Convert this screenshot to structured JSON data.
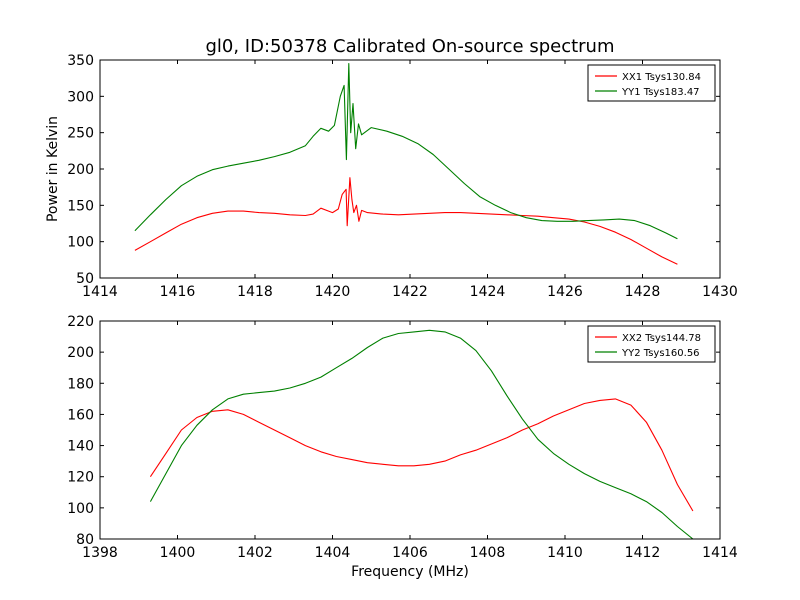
{
  "colors": {
    "red": "#ff0000",
    "green": "#008000",
    "axes": "#000000",
    "background": "#ffffff"
  },
  "chart_data": [
    {
      "type": "line",
      "title": "gl0, ID:50378 Calibrated On-source spectrum",
      "xlabel": "",
      "ylabel": "Power in Kelvin",
      "xlim": [
        1414,
        1430
      ],
      "ylim": [
        50,
        350
      ],
      "xticks": [
        1414,
        1416,
        1418,
        1420,
        1422,
        1424,
        1426,
        1428,
        1430
      ],
      "yticks": [
        50,
        100,
        150,
        200,
        250,
        300,
        350
      ],
      "grid": false,
      "legend_position": "top-right",
      "series": [
        {
          "name": "XX1 Tsys130.84",
          "color": "#ff0000",
          "x": [
            1414.9,
            1415.3,
            1415.7,
            1416.1,
            1416.5,
            1416.9,
            1417.3,
            1417.7,
            1418.1,
            1418.5,
            1418.9,
            1419.3,
            1419.5,
            1419.7,
            1419.9,
            1420.0,
            1420.15,
            1420.25,
            1420.35,
            1420.38,
            1420.45,
            1420.5,
            1420.55,
            1420.62,
            1420.68,
            1420.75,
            1420.9,
            1421.3,
            1421.7,
            1422.1,
            1422.5,
            1422.9,
            1423.3,
            1423.7,
            1424.1,
            1424.5,
            1424.9,
            1425.3,
            1425.7,
            1426.1,
            1426.5,
            1426.9,
            1427.3,
            1427.7,
            1428.1,
            1428.5,
            1428.9
          ],
          "y": [
            88,
            100,
            112,
            124,
            133,
            139,
            142,
            142,
            140,
            139,
            137,
            136,
            138,
            146,
            142,
            140,
            145,
            165,
            172,
            122,
            188,
            158,
            140,
            150,
            128,
            143,
            140,
            138,
            137,
            138,
            139,
            140,
            140,
            139,
            138,
            137,
            136,
            135,
            133,
            131,
            127,
            121,
            113,
            103,
            91,
            79,
            69
          ]
        },
        {
          "name": "YY1 Tsys183.47",
          "color": "#008000",
          "x": [
            1414.9,
            1415.3,
            1415.7,
            1416.1,
            1416.5,
            1416.9,
            1417.3,
            1417.7,
            1418.1,
            1418.5,
            1418.9,
            1419.3,
            1419.5,
            1419.7,
            1419.9,
            1420.05,
            1420.2,
            1420.3,
            1420.36,
            1420.42,
            1420.47,
            1420.53,
            1420.6,
            1420.67,
            1420.75,
            1421.0,
            1421.4,
            1421.8,
            1422.2,
            1422.6,
            1423.0,
            1423.4,
            1423.8,
            1424.2,
            1424.6,
            1425.0,
            1425.4,
            1425.8,
            1426.2,
            1426.6,
            1427.0,
            1427.4,
            1427.8,
            1428.2,
            1428.6,
            1428.9
          ],
          "y": [
            115,
            137,
            158,
            177,
            190,
            199,
            204,
            208,
            212,
            217,
            223,
            232,
            245,
            256,
            252,
            260,
            300,
            315,
            213,
            345,
            250,
            290,
            228,
            262,
            247,
            257,
            252,
            245,
            235,
            220,
            200,
            180,
            162,
            150,
            140,
            133,
            129,
            128,
            128,
            129,
            130,
            131,
            129,
            122,
            112,
            104
          ]
        }
      ]
    },
    {
      "type": "line",
      "title": "",
      "xlabel": "Frequency (MHz)",
      "ylabel": "",
      "xlim": [
        1398,
        1414
      ],
      "ylim": [
        80,
        220
      ],
      "xticks": [
        1398,
        1400,
        1402,
        1404,
        1406,
        1408,
        1410,
        1412,
        1414
      ],
      "yticks": [
        80,
        100,
        120,
        140,
        160,
        180,
        200,
        220
      ],
      "grid": false,
      "legend_position": "top-right",
      "series": [
        {
          "name": "XX2 Tsys144.78",
          "color": "#ff0000",
          "x": [
            1399.3,
            1399.7,
            1400.1,
            1400.5,
            1400.9,
            1401.3,
            1401.7,
            1402.1,
            1402.5,
            1402.9,
            1403.3,
            1403.7,
            1404.1,
            1404.5,
            1404.9,
            1405.3,
            1405.7,
            1406.1,
            1406.5,
            1406.9,
            1407.3,
            1407.7,
            1408.1,
            1408.5,
            1408.9,
            1409.3,
            1409.7,
            1410.1,
            1410.5,
            1410.9,
            1411.3,
            1411.7,
            1412.1,
            1412.5,
            1412.9,
            1413.3
          ],
          "y": [
            120,
            135,
            150,
            158,
            162,
            163,
            160,
            155,
            150,
            145,
            140,
            136,
            133,
            131,
            129,
            128,
            127,
            127,
            128,
            130,
            134,
            137,
            141,
            145,
            150,
            154,
            159,
            163,
            167,
            169,
            170,
            166,
            155,
            137,
            115,
            98
          ]
        },
        {
          "name": "YY2 Tsys160.56",
          "color": "#008000",
          "x": [
            1399.3,
            1399.7,
            1400.1,
            1400.5,
            1400.9,
            1401.3,
            1401.7,
            1402.1,
            1402.5,
            1402.9,
            1403.3,
            1403.7,
            1404.1,
            1404.5,
            1404.9,
            1405.3,
            1405.7,
            1406.1,
            1406.5,
            1406.9,
            1407.3,
            1407.7,
            1408.1,
            1408.5,
            1408.9,
            1409.3,
            1409.7,
            1410.1,
            1410.5,
            1410.9,
            1411.3,
            1411.7,
            1412.1,
            1412.5,
            1412.9,
            1413.3
          ],
          "y": [
            104,
            122,
            140,
            153,
            163,
            170,
            173,
            174,
            175,
            177,
            180,
            184,
            190,
            196,
            203,
            209,
            212,
            213,
            214,
            213,
            209,
            201,
            188,
            172,
            157,
            144,
            135,
            128,
            122,
            117,
            113,
            109,
            104,
            97,
            88,
            80
          ]
        }
      ]
    }
  ]
}
